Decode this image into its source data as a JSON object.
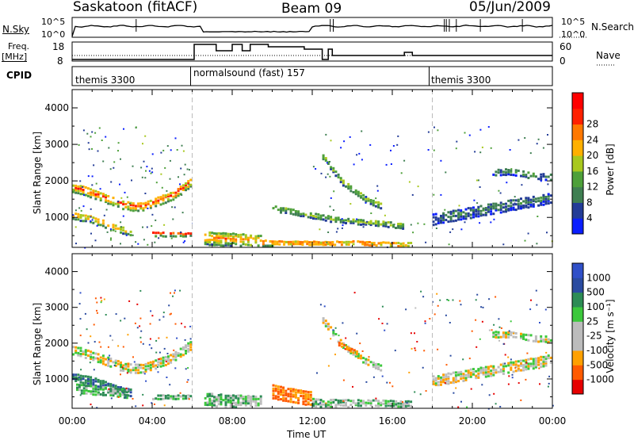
{
  "header": {
    "station": "Saskatoon (fitACF)",
    "beam": "Beam 09",
    "date": "05/Jun/2009"
  },
  "strip_labels": {
    "nsky": "N.Sky",
    "nsky_top": "10^5",
    "nsky_bottom": "10^0",
    "nsearch": "N.Search",
    "nsearch_top": "10^5",
    "nsearch_bottom": "10^0",
    "freq_line1": "Freq.",
    "freq_line2": "[MHz]",
    "freq_top": "18",
    "freq_bottom": "8",
    "nave": "Nave",
    "nave_top": "60",
    "nave_bottom": "0",
    "cpid": "CPID"
  },
  "cpid_segments": [
    {
      "label": "themis 3300",
      "start_hour": 0
    },
    {
      "label": "normalsound (fast) 157",
      "start_hour": 6
    },
    {
      "label": "themis 3300",
      "start_hour": 18
    }
  ],
  "colors": {
    "power": [
      "#0a1eff",
      "#233c97",
      "#3f7f52",
      "#4ea03a",
      "#a8c81e",
      "#ffb000",
      "#ff7800",
      "#ff2000",
      "#ff0000"
    ],
    "velocity": [
      "#e60000",
      "#ff5a00",
      "#ffa000",
      "#bcbcbc",
      "#bcbcbc",
      "#3cc83c",
      "#2d8c55",
      "#2a4ba0",
      "#3050c8"
    ]
  },
  "chart_data": [
    {
      "type": "heatmap",
      "panel": "power",
      "xlabel": "",
      "ylabel": "Slant Range [km]",
      "xlim": [
        0,
        24
      ],
      "ylim": [
        180,
        4500
      ],
      "yticks": [
        1000,
        2000,
        3000,
        4000
      ],
      "colorbar": {
        "label": "Power [dB]",
        "range": [
          0,
          30
        ],
        "ticks": [
          "4",
          "8",
          "12",
          "16",
          "20",
          "24",
          "28"
        ]
      },
      "bands": [
        {
          "t": [
            0.0,
            0.5,
            1.0,
            1.5,
            2.0,
            2.5,
            3.0,
            3.5,
            4.0,
            4.5,
            5.0,
            5.5,
            6.0
          ],
          "r": [
            1850,
            1800,
            1700,
            1600,
            1500,
            1400,
            1350,
            1350,
            1450,
            1550,
            1650,
            1850,
            2050
          ],
          "w": 260,
          "p": 23
        },
        {
          "t": [
            0.0,
            0.5,
            1.0,
            1.5,
            2.0,
            2.5,
            3.0
          ],
          "r": [
            1100,
            1050,
            1000,
            900,
            800,
            700,
            650
          ],
          "w": 220,
          "p": 20
        },
        {
          "t": [
            4.0,
            4.5,
            5.0,
            5.5,
            6.0
          ],
          "r": [
            600,
            600,
            600,
            580,
            600
          ],
          "w": 150,
          "p": 22
        },
        {
          "t": [
            6.6,
            7.5,
            8.5,
            9.0,
            9.5
          ],
          "r": [
            480,
            460,
            430,
            400,
            400
          ],
          "w": 380,
          "p": 20
        },
        {
          "t": [
            9.5,
            11.0,
            12.5,
            14.0,
            15.5,
            16.5,
            17.0
          ],
          "r": [
            350,
            330,
            320,
            330,
            300,
            280,
            300
          ],
          "w": 200,
          "p": 22
        },
        {
          "t": [
            12.5,
            13.0,
            13.5,
            14.0,
            14.5,
            15.0,
            15.5
          ],
          "r": [
            2700,
            2350,
            2000,
            1800,
            1600,
            1450,
            1350
          ],
          "w": 170,
          "p": 15
        },
        {
          "t": [
            10.0,
            11.0,
            12.0,
            13.0,
            14.0,
            15.0,
            16.0,
            16.6
          ],
          "r": [
            1300,
            1200,
            1100,
            1000,
            950,
            900,
            850,
            800
          ],
          "w": 170,
          "p": 14
        },
        {
          "t": [
            18.0,
            19.0,
            20.0,
            21.0,
            22.0,
            23.0,
            24.0
          ],
          "r": [
            1000,
            1100,
            1200,
            1300,
            1400,
            1500,
            1600
          ],
          "w": 320,
          "p": 8
        },
        {
          "t": [
            21.0,
            22.0,
            23.0,
            24.0
          ],
          "r": [
            2300,
            2300,
            2200,
            2150
          ],
          "w": 200,
          "p": 9
        }
      ]
    },
    {
      "type": "heatmap",
      "panel": "velocity",
      "xlabel": "Time UT",
      "ylabel": "Slant Range [km]",
      "xlim": [
        0,
        24
      ],
      "ylim": [
        180,
        4500
      ],
      "yticks": [
        1000,
        2000,
        3000,
        4000
      ],
      "xticks": [
        "00:00",
        "04:00",
        "08:00",
        "12:00",
        "16:00",
        "20:00",
        "00:00"
      ],
      "colorbar": {
        "label": "Velocity [m s⁻¹]",
        "ticks": [
          "1000",
          "500",
          "100",
          "25",
          "-25",
          "-100",
          "-500",
          "-1000"
        ]
      },
      "bands": [
        {
          "t": [
            0.0,
            0.5,
            1.0,
            1.5,
            2.0,
            2.5,
            3.0,
            3.5,
            4.0,
            4.5,
            5.0,
            5.5,
            6.0
          ],
          "r": [
            1850,
            1800,
            1700,
            1600,
            1500,
            1400,
            1350,
            1350,
            1450,
            1550,
            1650,
            1850,
            2050
          ],
          "w": 280,
          "v": 0
        },
        {
          "t": [
            0.0,
            0.5,
            1.0,
            1.5,
            2.0,
            2.5,
            3.0
          ],
          "r": [
            1100,
            1050,
            1000,
            900,
            800,
            700,
            650
          ],
          "w": 240,
          "v": 300
        },
        {
          "t": [
            0.2,
            1.0,
            2.0,
            2.8
          ],
          "r": [
            800,
            750,
            700,
            650
          ],
          "w": 280,
          "v": 60
        },
        {
          "t": [
            4.0,
            4.5,
            5.0,
            5.5,
            6.0
          ],
          "r": [
            560,
            560,
            560,
            560,
            560
          ],
          "w": 150,
          "v": 60
        },
        {
          "t": [
            6.6,
            7.5,
            8.5,
            9.5
          ],
          "r": [
            500,
            450,
            420,
            420
          ],
          "w": 380,
          "v": 40
        },
        {
          "t": [
            10.0,
            10.5,
            11.0,
            11.5,
            12.0
          ],
          "r": [
            700,
            650,
            600,
            550,
            500
          ],
          "w": 420,
          "v": -120
        },
        {
          "t": [
            12.0,
            13.0,
            14.0,
            15.0,
            16.0,
            17.0
          ],
          "r": [
            400,
            380,
            360,
            360,
            340,
            340
          ],
          "w": 260,
          "v": 40
        },
        {
          "t": [
            12.5,
            13.0,
            13.5,
            14.0,
            14.5,
            15.0,
            15.5
          ],
          "r": [
            2700,
            2350,
            2000,
            1800,
            1600,
            1450,
            1350
          ],
          "w": 180,
          "v": 0
        },
        {
          "t": [
            13.3,
            13.8,
            14.3
          ],
          "r": [
            2050,
            1900,
            1750
          ],
          "w": 130,
          "v": -120
        },
        {
          "t": [
            18.0,
            19.0,
            20.0,
            21.0,
            22.0,
            23.0,
            24.0
          ],
          "r": [
            1000,
            1100,
            1200,
            1300,
            1400,
            1500,
            1600
          ],
          "w": 320,
          "v": 0
        },
        {
          "t": [
            21.0,
            22.0,
            23.0,
            24.0
          ],
          "r": [
            2300,
            2300,
            2200,
            2150
          ],
          "w": 200,
          "v": 0
        }
      ]
    }
  ]
}
